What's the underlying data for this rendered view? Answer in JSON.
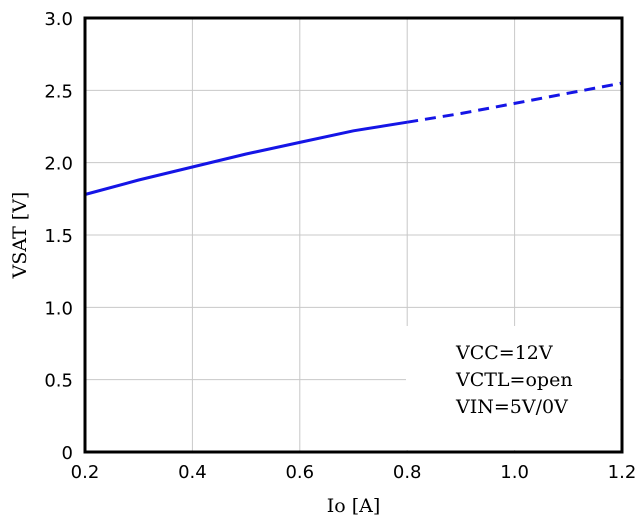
{
  "chart_data": {
    "type": "line",
    "xlabel": "Io [A]",
    "ylabel": "VSAT [V]",
    "xlim": [
      0.2,
      1.2
    ],
    "ylim": [
      0,
      3.0
    ],
    "xticks": [
      "0.2",
      "0.4",
      "0.6",
      "0.8",
      "1.0",
      "1.2"
    ],
    "yticks": [
      "0",
      "0.5",
      "1.0",
      "1.5",
      "2.0",
      "2.5",
      "3.0"
    ],
    "grid": true,
    "line_color": "#1515e6",
    "series": [
      {
        "style": "solid",
        "x": [
          0.2,
          0.3,
          0.4,
          0.5,
          0.6,
          0.7,
          0.8
        ],
        "y": [
          1.78,
          1.88,
          1.97,
          2.06,
          2.14,
          2.22,
          2.28
        ]
      },
      {
        "style": "dashed",
        "x": [
          0.8,
          0.9,
          1.0,
          1.1,
          1.2
        ],
        "y": [
          2.28,
          2.34,
          2.41,
          2.48,
          2.55
        ]
      }
    ],
    "annotations": [
      "VCC=12V",
      "VCTL=open",
      "VIN=5V/0V"
    ]
  }
}
